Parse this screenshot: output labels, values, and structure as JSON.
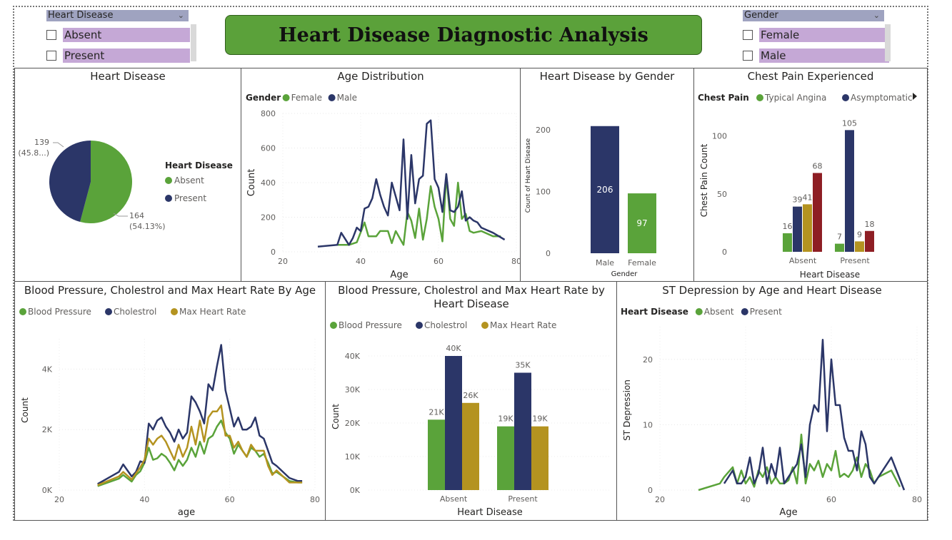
{
  "dashboard_title": "Heart Disease Diagnostic Analysis",
  "colors": {
    "green": "#5aa33a",
    "navy": "#2b3668",
    "gold": "#b49320",
    "red": "#8e1e24",
    "slicer_head": "#9fa3c0",
    "slicer_item": "#c5a8d6",
    "banner": "#5ba13a"
  },
  "slicers": {
    "heart_disease": {
      "label": "Heart Disease",
      "options": [
        "Absent",
        "Present"
      ]
    },
    "gender": {
      "label": "Gender",
      "options": [
        "Female",
        "Male"
      ]
    }
  },
  "chart_data": [
    {
      "id": "pie",
      "type": "pie",
      "title": "Heart Disease",
      "legend_title": "Heart Disease",
      "labels": [
        "Absent",
        "Present"
      ],
      "values": [
        164,
        139
      ],
      "data_labels": [
        "164",
        "(54.13%)",
        "139",
        "(45.8...)"
      ]
    },
    {
      "id": "age",
      "type": "line",
      "title": "Age Distribution",
      "legend_title": "Gender",
      "xlabel": "Age",
      "ylabel": "Count",
      "xlim": [
        20,
        80
      ],
      "ylim": [
        0,
        800
      ],
      "xticks": [
        "20",
        "40",
        "60",
        "80"
      ],
      "yticks": [
        "0",
        "200",
        "400",
        "600",
        "800"
      ],
      "series": [
        {
          "name": "Female",
          "x": [
            34,
            37,
            39,
            41,
            42,
            44,
            45,
            47,
            48,
            49,
            51,
            52,
            53,
            54,
            55,
            56,
            57,
            58,
            59,
            60,
            61,
            62,
            63,
            64,
            65,
            66,
            67,
            68,
            69,
            71,
            74,
            76
          ],
          "y": [
            40,
            40,
            55,
            170,
            90,
            90,
            120,
            120,
            50,
            120,
            40,
            230,
            180,
            80,
            250,
            70,
            190,
            380,
            260,
            190,
            60,
            440,
            190,
            150,
            400,
            190,
            220,
            120,
            110,
            120,
            90,
            90
          ]
        },
        {
          "name": "Male",
          "x": [
            29,
            34,
            35,
            37,
            38,
            39,
            40,
            41,
            42,
            43,
            44,
            45,
            46,
            47,
            48,
            49,
            50,
            51,
            52,
            53,
            54,
            55,
            56,
            57,
            58,
            59,
            60,
            61,
            62,
            63,
            64,
            65,
            66,
            67,
            68,
            69,
            70,
            71,
            74,
            77
          ],
          "y": [
            30,
            40,
            110,
            40,
            80,
            140,
            120,
            250,
            260,
            310,
            420,
            330,
            260,
            210,
            400,
            320,
            240,
            650,
            190,
            560,
            280,
            420,
            440,
            740,
            760,
            420,
            370,
            230,
            450,
            240,
            230,
            260,
            350,
            180,
            200,
            180,
            170,
            140,
            110,
            70
          ]
        }
      ]
    },
    {
      "id": "gender",
      "type": "bar",
      "title": "Heart Disease by Gender",
      "xlabel": "Gender",
      "ylabel": "Count of Heart Disease",
      "categories": [
        "Male",
        "Female"
      ],
      "values": [
        206,
        97
      ],
      "ylim": [
        0,
        230
      ],
      "yticks": [
        "0",
        "100",
        "200"
      ]
    },
    {
      "id": "chest",
      "type": "bar",
      "title": "Chest Pain Experienced",
      "legend_title": "Chest Pain",
      "xlabel": "Heart Disease",
      "ylabel": "Chest Pain Count",
      "categories": [
        "Absent",
        "Present"
      ],
      "ylim": [
        0,
        120
      ],
      "yticks": [
        "0",
        "50",
        "100"
      ],
      "series": [
        {
          "name": "Typical Angina",
          "values": [
            16,
            7
          ]
        },
        {
          "name": "Asymptomatic",
          "values": [
            39,
            105
          ]
        },
        {
          "name": "",
          "values": [
            41,
            9
          ]
        },
        {
          "name": "",
          "values": [
            68,
            18
          ]
        }
      ]
    },
    {
      "id": "bpage",
      "type": "line",
      "title": "Blood Pressure, Cholestrol and Max Heart Rate By Age",
      "xlabel": "age",
      "ylabel": "Count",
      "xlim": [
        20,
        80
      ],
      "ylim": [
        0,
        5000
      ],
      "xticks": [
        "20",
        "40",
        "60",
        "80"
      ],
      "yticks": [
        "0K",
        "2K",
        "4K"
      ],
      "x": [
        29,
        34,
        35,
        37,
        38,
        39,
        40,
        41,
        42,
        43,
        44,
        45,
        46,
        47,
        48,
        49,
        50,
        51,
        52,
        53,
        54,
        55,
        56,
        57,
        58,
        59,
        60,
        61,
        62,
        63,
        64,
        65,
        66,
        67,
        68,
        69,
        70,
        71,
        74,
        76,
        77
      ],
      "series": [
        {
          "name": "Blood Pressure",
          "values": [
            130,
            380,
            500,
            280,
            500,
            620,
            900,
            1400,
            1000,
            1050,
            1200,
            1100,
            900,
            650,
            1000,
            800,
            1000,
            1400,
            1100,
            1600,
            1200,
            1700,
            1800,
            2100,
            2300,
            1900,
            1700,
            1200,
            1500,
            1300,
            1100,
            1400,
            1300,
            1100,
            1200,
            900,
            550,
            600,
            300,
            250,
            250
          ]
        },
        {
          "name": "Cholestrol",
          "values": [
            200,
            600,
            850,
            450,
            600,
            950,
            900,
            2200,
            2000,
            2300,
            2400,
            2100,
            1900,
            1600,
            2000,
            1700,
            1900,
            3100,
            2900,
            2600,
            2200,
            3500,
            3300,
            4100,
            4800,
            3300,
            2700,
            2100,
            2400,
            2000,
            2000,
            2100,
            2400,
            1800,
            1700,
            1300,
            900,
            800,
            400,
            300,
            300
          ]
        },
        {
          "name": "Max Heart Rate",
          "values": [
            160,
            450,
            600,
            350,
            550,
            750,
            1000,
            1700,
            1500,
            1700,
            1800,
            1600,
            1300,
            1000,
            1500,
            1100,
            1400,
            2100,
            1500,
            2300,
            1600,
            2400,
            2600,
            2600,
            2800,
            1800,
            1800,
            1400,
            1600,
            1300,
            1100,
            1500,
            1300,
            1300,
            1300,
            800,
            500,
            650,
            250,
            250,
            250
          ]
        }
      ]
    },
    {
      "id": "bphd",
      "type": "bar",
      "title": "Blood Pressure, Cholestrol and Max Heart Rate by Heart Disease",
      "title_lines": [
        "Blood Pressure, Cholestrol and Max Heart Rate by",
        "Heart Disease"
      ],
      "xlabel": "Heart Disease",
      "ylabel": "Count",
      "categories": [
        "Absent",
        "Present"
      ],
      "ylim": [
        0,
        45000
      ],
      "yticks": [
        "0K",
        "10K",
        "20K",
        "30K",
        "40K"
      ],
      "series": [
        {
          "name": "Blood Pressure",
          "values": [
            21000,
            19000
          ],
          "labels": [
            "21K",
            "19K"
          ]
        },
        {
          "name": "Cholestrol",
          "values": [
            40000,
            35000
          ],
          "labels": [
            "40K",
            "35K"
          ]
        },
        {
          "name": "Max Heart Rate",
          "values": [
            26000,
            19000
          ],
          "labels": [
            "26K",
            "19K"
          ]
        }
      ]
    },
    {
      "id": "st",
      "type": "line",
      "title": "ST Depression by Age and Heart Disease",
      "legend_title": "Heart Disease",
      "xlabel": "Age",
      "ylabel": "ST Depression",
      "xlim": [
        20,
        80
      ],
      "ylim": [
        0,
        25
      ],
      "xticks": [
        "20",
        "40",
        "60",
        "80"
      ],
      "yticks": [
        "0",
        "10",
        "20"
      ],
      "series": [
        {
          "name": "Absent",
          "x": [
            29,
            34,
            35,
            37,
            38,
            39,
            40,
            41,
            42,
            43,
            44,
            45,
            46,
            47,
            48,
            49,
            50,
            51,
            52,
            53,
            54,
            55,
            56,
            57,
            58,
            59,
            60,
            61,
            62,
            63,
            64,
            65,
            66,
            67,
            68,
            69,
            70,
            71,
            74,
            76
          ],
          "y": [
            0,
            1,
            2,
            3.5,
            1,
            3,
            1,
            2,
            0.5,
            3,
            2,
            3.5,
            1,
            2,
            1,
            1,
            1.5,
            3.5,
            1,
            8.5,
            1,
            4,
            3,
            4.5,
            2,
            4,
            3,
            6,
            2,
            2.5,
            2,
            3,
            5,
            2,
            4,
            3,
            1,
            2,
            3,
            0.5
          ]
        },
        {
          "name": "Present",
          "x": [
            35,
            37,
            38,
            39,
            40,
            41,
            42,
            43,
            44,
            45,
            46,
            47,
            48,
            49,
            50,
            51,
            52,
            53,
            54,
            55,
            56,
            57,
            58,
            59,
            60,
            61,
            62,
            63,
            64,
            65,
            66,
            67,
            68,
            69,
            70,
            74,
            77
          ],
          "y": [
            1,
            3,
            1,
            1,
            2,
            5,
            1,
            2.5,
            6.5,
            1,
            4,
            2,
            6.5,
            1,
            2,
            3,
            4,
            7,
            2,
            10,
            13,
            12,
            23,
            9,
            20,
            13,
            13,
            8,
            6,
            6,
            3,
            9,
            7,
            2,
            1,
            5,
            0
          ]
        }
      ]
    }
  ]
}
